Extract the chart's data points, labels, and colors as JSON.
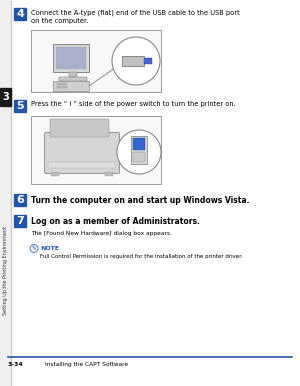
{
  "bg_color": "#ffffff",
  "sidebar_color": "#1a1a1a",
  "sidebar_text": "Setting Up the Printing Environment",
  "sidebar_num": "3",
  "accent_color": "#2255aa",
  "step4_num": "4",
  "step4_text": "Connect the A-type (flat) end of the USB cable to the USB port\non the computer.",
  "step5_num": "5",
  "step5_text": "Press the “ I ” side of the power switch to turn the printer on.",
  "step6_num": "6",
  "step6_text": "Turn the computer on and start up Windows Vista.",
  "step7_num": "7",
  "step7_text": "Log on as a member of Administrators.",
  "step7_sub": "The [Found New Hardware] dialog box appears.",
  "note_label": "NOTE",
  "note_text": "Full Control Permission is required for the installation of the printer driver.",
  "footer_line_color": "#2255aa",
  "footer_left": "3-34",
  "footer_right": "Installing the CAPT Software"
}
